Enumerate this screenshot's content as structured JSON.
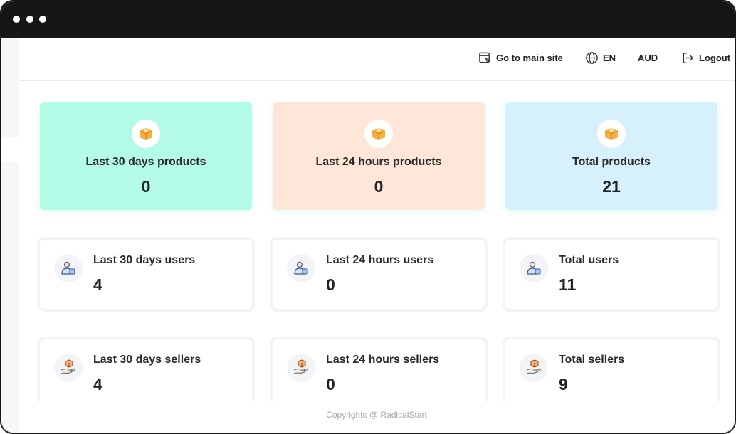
{
  "topbar": {
    "main_site_label": "Go to main site",
    "language_label": "EN",
    "currency_label": "AUD",
    "logout_label": "Logout"
  },
  "product_cards": [
    {
      "label": "Last 30 days products",
      "value": "0",
      "color": "#b3fae7"
    },
    {
      "label": "Last 24 hours products",
      "value": "0",
      "color": "#fee7d8"
    },
    {
      "label": "Total products",
      "value": "21",
      "color": "#d6f0fd"
    }
  ],
  "user_cards": [
    {
      "label": "Last 30 days users",
      "value": "4"
    },
    {
      "label": "Last 24 hours users",
      "value": "0"
    },
    {
      "label": "Total users",
      "value": "11"
    }
  ],
  "seller_cards": [
    {
      "label": "Last 30 days sellers",
      "value": "4"
    },
    {
      "label": "Last 24 hours sellers",
      "value": "0"
    },
    {
      "label": "Total sellers",
      "value": "9"
    }
  ],
  "footer": {
    "copyright": "Copyrights @ RadicalStart"
  },
  "icons": {
    "product": "package-box-icon",
    "user": "user-with-bag-icon",
    "seller": "hand-holding-box-icon"
  }
}
